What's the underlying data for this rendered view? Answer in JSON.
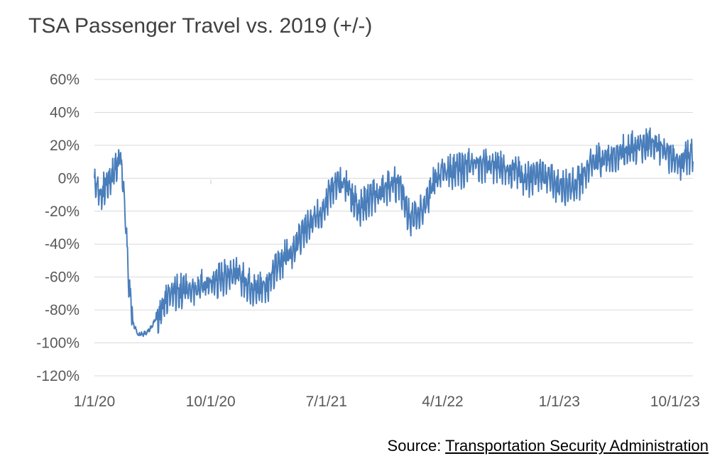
{
  "title": "TSA Passenger Travel vs. 2019 (+/-)",
  "source": {
    "prefix": "Source: ",
    "link_text": "Transportation Security Administration"
  },
  "colors": {
    "series": "#4a7ebb",
    "grid": "#d9d9d9",
    "axis_text": "#595959",
    "title": "#404040"
  },
  "chart_data": {
    "type": "line",
    "title": "TSA Passenger Travel vs. 2019 (+/-)",
    "xlabel": "",
    "ylabel": "",
    "ylim": [
      -1.2,
      0.6
    ],
    "xlim": [
      "2020-01-01",
      "2023-11-12"
    ],
    "grid": true,
    "legend": "none",
    "y_ticks": [
      {
        "v": 0.6,
        "label": "60%"
      },
      {
        "v": 0.4,
        "label": "40%"
      },
      {
        "v": 0.2,
        "label": "20%"
      },
      {
        "v": 0.0,
        "label": "0%"
      },
      {
        "v": -0.2,
        "label": "-20%"
      },
      {
        "v": -0.4,
        "label": "-40%"
      },
      {
        "v": -0.6,
        "label": "-60%"
      },
      {
        "v": -0.8,
        "label": "-80%"
      },
      {
        "v": -1.0,
        "label": "-100%"
      },
      {
        "v": -1.2,
        "label": "-120%"
      }
    ],
    "x_ticks": [
      {
        "date": "2020-01-01",
        "label": "1/1/20"
      },
      {
        "date": "2020-10-01",
        "label": "10/1/20"
      },
      {
        "date": "2021-07-01",
        "label": "7/1/21"
      },
      {
        "date": "2022-04-01",
        "label": "4/1/22"
      },
      {
        "date": "2023-01-01",
        "label": "1/1/23"
      },
      {
        "date": "2023-10-01",
        "label": "10/1/23"
      }
    ],
    "series": [
      {
        "color": "#4a7ebb",
        "x": [
          "2020-01-01",
          "2020-01-15",
          "2020-02-01",
          "2020-02-15",
          "2020-03-01",
          "2020-03-10",
          "2020-03-20",
          "2020-04-01",
          "2020-04-13",
          "2020-05-01",
          "2020-05-15",
          "2020-06-01",
          "2020-07-01",
          "2020-08-01",
          "2020-09-01",
          "2020-10-01",
          "2020-11-01",
          "2020-11-25",
          "2020-12-20",
          "2021-01-15",
          "2021-02-15",
          "2021-03-15",
          "2021-04-15",
          "2021-05-15",
          "2021-06-15",
          "2021-07-15",
          "2021-08-15",
          "2021-09-15",
          "2021-10-15",
          "2021-11-25",
          "2021-12-20",
          "2022-01-15",
          "2022-02-15",
          "2022-03-15",
          "2022-04-15",
          "2022-05-15",
          "2022-06-15",
          "2022-07-15",
          "2022-08-15",
          "2022-09-15",
          "2022-10-15",
          "2022-11-25",
          "2022-12-20",
          "2023-01-15",
          "2023-02-15",
          "2023-03-15",
          "2023-04-15",
          "2023-05-15",
          "2023-06-15",
          "2023-07-15",
          "2023-08-15",
          "2023-09-15",
          "2023-10-15",
          "2023-11-12"
        ],
        "y": [
          0.0,
          -0.1,
          -0.02,
          0.03,
          0.15,
          -0.05,
          -0.55,
          -0.88,
          -0.95,
          -0.94,
          -0.9,
          -0.82,
          -0.7,
          -0.67,
          -0.66,
          -0.64,
          -0.6,
          -0.56,
          -0.62,
          -0.68,
          -0.63,
          -0.5,
          -0.42,
          -0.3,
          -0.22,
          -0.05,
          -0.03,
          -0.18,
          -0.12,
          -0.05,
          -0.02,
          -0.26,
          -0.18,
          0.0,
          0.05,
          0.05,
          0.1,
          0.08,
          0.07,
          0.05,
          0.0,
          0.02,
          -0.03,
          -0.05,
          -0.03,
          0.1,
          0.12,
          0.14,
          0.18,
          0.2,
          0.22,
          0.15,
          0.1,
          0.15
        ]
      }
    ]
  }
}
